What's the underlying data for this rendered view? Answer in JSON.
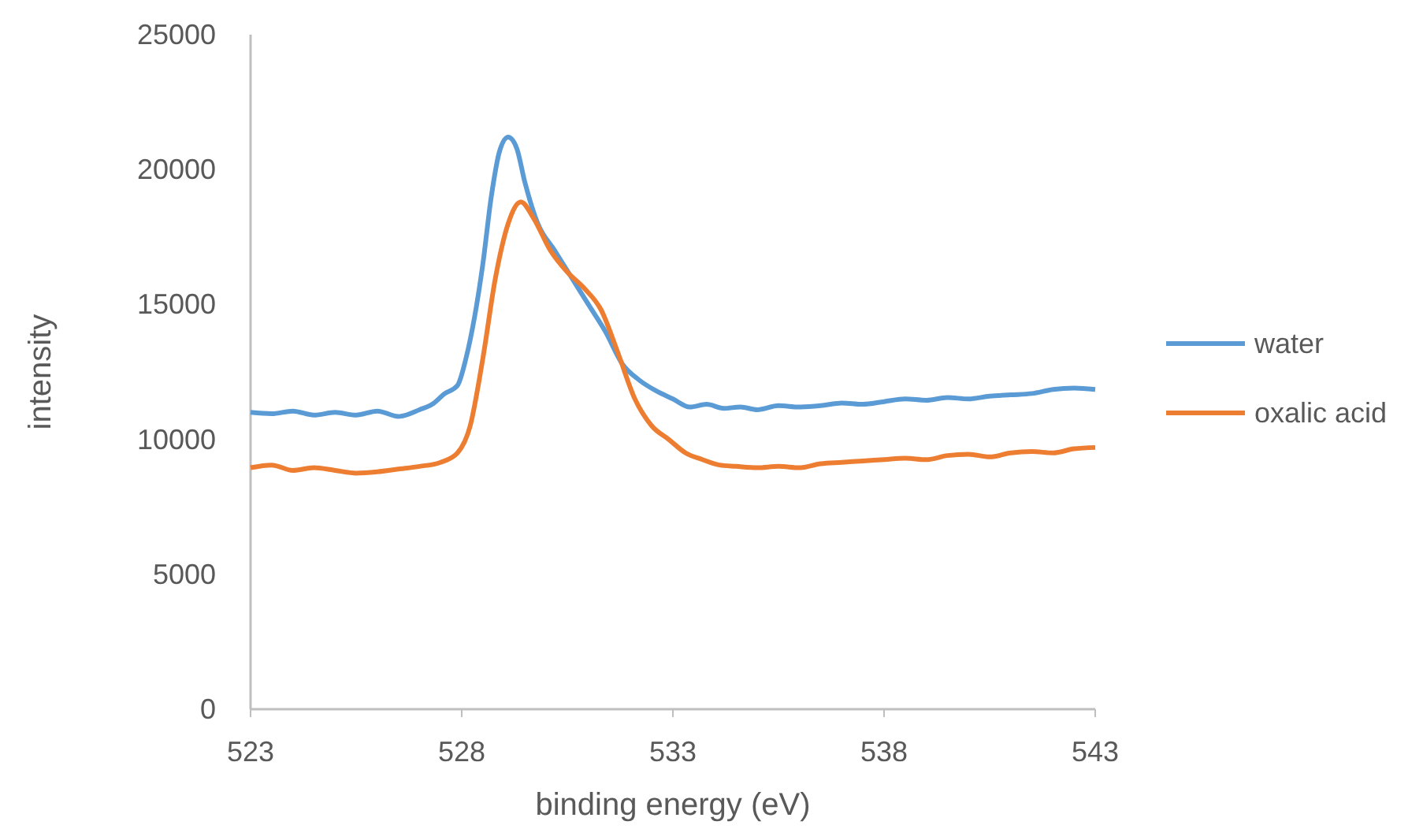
{
  "chart_data": {
    "type": "line",
    "xlabel": "binding energy (eV)",
    "ylabel": "intensity",
    "xlim": [
      523,
      543
    ],
    "xticks": [
      523,
      528,
      533,
      538,
      543
    ],
    "ylim": [
      0,
      25000
    ],
    "yticks": [
      0,
      5000,
      10000,
      15000,
      20000,
      25000
    ],
    "grid": false,
    "legend": "right",
    "line_style": "solid",
    "series": [
      {
        "name": "water",
        "color": "#5b9bd5",
        "x": [
          523,
          523.5,
          524,
          524.5,
          525,
          525.5,
          526,
          526.5,
          527,
          527.3,
          527.6,
          527.9,
          528.1,
          528.3,
          528.5,
          528.7,
          528.9,
          529.1,
          529.3,
          529.5,
          529.8,
          530.2,
          530.6,
          531,
          531.4,
          531.8,
          532.2,
          532.6,
          533,
          533.4,
          533.8,
          534.2,
          534.6,
          535,
          535.5,
          536,
          536.5,
          537,
          537.5,
          538,
          538.5,
          539,
          539.5,
          540,
          540.5,
          541,
          541.5,
          542,
          542.5,
          543
        ],
        "values": [
          11000,
          10950,
          11050,
          10900,
          11000,
          10900,
          11050,
          10850,
          11100,
          11300,
          11700,
          12000,
          13000,
          14500,
          16500,
          19000,
          20700,
          21200,
          20800,
          19500,
          18000,
          17000,
          16000,
          15000,
          14000,
          12800,
          12200,
          11800,
          11500,
          11200,
          11300,
          11150,
          11200,
          11100,
          11250,
          11200,
          11250,
          11350,
          11300,
          11400,
          11500,
          11450,
          11550,
          11500,
          11600,
          11650,
          11700,
          11850,
          11900,
          11850
        ]
      },
      {
        "name": "oxalic acid",
        "color": "#ed7d31",
        "x": [
          523,
          523.5,
          524,
          524.5,
          525,
          525.5,
          526,
          526.5,
          527,
          527.5,
          527.9,
          528.2,
          528.5,
          528.8,
          529.1,
          529.4,
          529.7,
          530.1,
          530.5,
          530.9,
          531.3,
          531.7,
          532.1,
          532.5,
          532.9,
          533.3,
          533.7,
          534.1,
          534.5,
          535,
          535.5,
          536,
          536.5,
          537,
          537.5,
          538,
          538.5,
          539,
          539.5,
          540,
          540.5,
          541,
          541.5,
          542,
          542.5,
          543
        ],
        "values": [
          8950,
          9050,
          8850,
          8950,
          8850,
          8750,
          8800,
          8900,
          9000,
          9150,
          9500,
          10500,
          13000,
          16000,
          18000,
          18800,
          18200,
          17000,
          16200,
          15600,
          14800,
          13200,
          11500,
          10500,
          10000,
          9500,
          9250,
          9050,
          9000,
          8950,
          9000,
          8950,
          9100,
          9150,
          9200,
          9250,
          9300,
          9250,
          9400,
          9450,
          9350,
          9500,
          9550,
          9500,
          9650,
          9700
        ]
      }
    ]
  }
}
